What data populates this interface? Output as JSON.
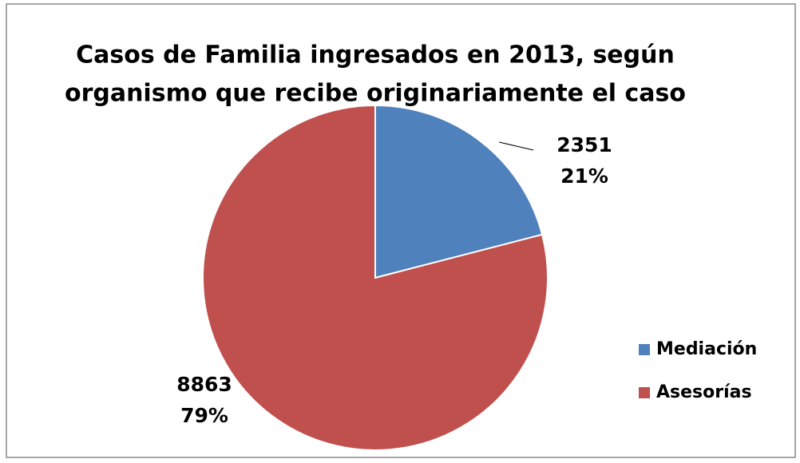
{
  "chart_data": {
    "type": "pie",
    "title": [
      "Casos de Familia ingresados en 2013, según",
      "organismo que recibe originariamente el caso"
    ],
    "categories": [
      "Mediación",
      "Asesorías"
    ],
    "values": [
      2351,
      8863
    ],
    "percentage_labels": [
      "21%",
      "79%"
    ],
    "colors": [
      "#4f81bd",
      "#c0504d"
    ],
    "legend": "right"
  }
}
